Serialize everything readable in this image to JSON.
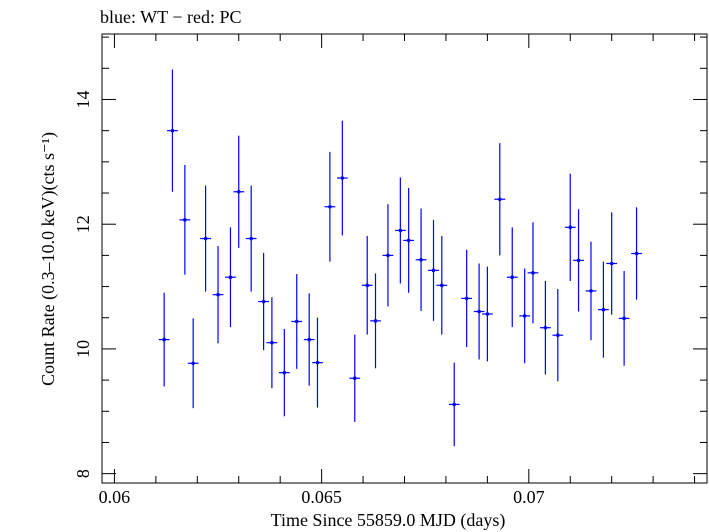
{
  "chart_data": {
    "type": "scatter",
    "title": "blue: WT − red: PC",
    "xlabel": "Time Since 55859.0 MJD (days)",
    "ylabel": "Count Rate (0.3–10.0 keV)(cts s⁻¹)",
    "xlim": [
      0.0597,
      0.0743
    ],
    "ylim": [
      7.85,
      15.05
    ],
    "xticks": [
      0.06,
      0.065,
      0.07
    ],
    "xtick_labels": [
      "0.06",
      "0.065",
      "0.07"
    ],
    "yticks": [
      8,
      10,
      12,
      14
    ],
    "ytick_labels": [
      "8",
      "10",
      "12",
      "14"
    ],
    "grid": false,
    "series": [
      {
        "color": "#0000ff",
        "x_err": 0.00013,
        "points": [
          {
            "x": 0.0612,
            "y": 10.15,
            "err": 0.75
          },
          {
            "x": 0.0614,
            "y": 13.5,
            "err": 0.98
          },
          {
            "x": 0.0617,
            "y": 12.07,
            "err": 0.88
          },
          {
            "x": 0.0619,
            "y": 9.77,
            "err": 0.72
          },
          {
            "x": 0.0622,
            "y": 11.77,
            "err": 0.85
          },
          {
            "x": 0.0625,
            "y": 10.87,
            "err": 0.78
          },
          {
            "x": 0.0628,
            "y": 11.15,
            "err": 0.8
          },
          {
            "x": 0.063,
            "y": 12.52,
            "err": 0.9
          },
          {
            "x": 0.0633,
            "y": 11.77,
            "err": 0.85
          },
          {
            "x": 0.0636,
            "y": 10.76,
            "err": 0.78
          },
          {
            "x": 0.0638,
            "y": 10.1,
            "err": 0.73
          },
          {
            "x": 0.0641,
            "y": 9.62,
            "err": 0.7
          },
          {
            "x": 0.0644,
            "y": 10.44,
            "err": 0.76
          },
          {
            "x": 0.0647,
            "y": 10.15,
            "err": 0.74
          },
          {
            "x": 0.0649,
            "y": 9.78,
            "err": 0.72
          },
          {
            "x": 0.0652,
            "y": 12.28,
            "err": 0.88
          },
          {
            "x": 0.0655,
            "y": 12.74,
            "err": 0.92
          },
          {
            "x": 0.0658,
            "y": 9.53,
            "err": 0.7
          },
          {
            "x": 0.0661,
            "y": 11.02,
            "err": 0.79
          },
          {
            "x": 0.0663,
            "y": 10.45,
            "err": 0.76
          },
          {
            "x": 0.0666,
            "y": 11.5,
            "err": 0.82
          },
          {
            "x": 0.0669,
            "y": 11.9,
            "err": 0.85
          },
          {
            "x": 0.0671,
            "y": 11.74,
            "err": 0.84
          },
          {
            "x": 0.0674,
            "y": 11.43,
            "err": 0.82
          },
          {
            "x": 0.0677,
            "y": 11.26,
            "err": 0.81
          },
          {
            "x": 0.0679,
            "y": 11.02,
            "err": 0.79
          },
          {
            "x": 0.0682,
            "y": 9.11,
            "err": 0.67
          },
          {
            "x": 0.0685,
            "y": 10.81,
            "err": 0.78
          },
          {
            "x": 0.0688,
            "y": 10.6,
            "err": 0.77
          },
          {
            "x": 0.069,
            "y": 10.56,
            "err": 0.76
          },
          {
            "x": 0.0693,
            "y": 12.4,
            "err": 0.9
          },
          {
            "x": 0.0696,
            "y": 11.15,
            "err": 0.8
          },
          {
            "x": 0.0699,
            "y": 10.53,
            "err": 0.76
          },
          {
            "x": 0.0701,
            "y": 11.22,
            "err": 0.81
          },
          {
            "x": 0.0704,
            "y": 10.34,
            "err": 0.75
          },
          {
            "x": 0.0707,
            "y": 10.22,
            "err": 0.74
          },
          {
            "x": 0.071,
            "y": 11.95,
            "err": 0.86
          },
          {
            "x": 0.0712,
            "y": 11.42,
            "err": 0.82
          },
          {
            "x": 0.0715,
            "y": 10.93,
            "err": 0.79
          },
          {
            "x": 0.0718,
            "y": 10.63,
            "err": 0.77
          },
          {
            "x": 0.072,
            "y": 11.37,
            "err": 0.82
          },
          {
            "x": 0.0723,
            "y": 10.49,
            "err": 0.76
          },
          {
            "x": 0.0726,
            "y": 11.53,
            "err": 0.74
          }
        ]
      }
    ]
  }
}
